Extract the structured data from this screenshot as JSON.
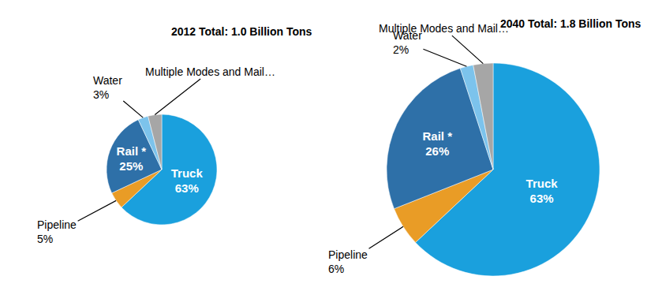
{
  "chart_data": [
    {
      "type": "pie",
      "title": "2012 Total: 1.0 Billion Tons",
      "categories": [
        "Truck",
        "Pipeline",
        "Rail *",
        "Water",
        "Multiple Modes and Mail…"
      ],
      "values": [
        63,
        5,
        25,
        3,
        4
      ],
      "value_labels": [
        "63%",
        "5%",
        "25%",
        "3%",
        null
      ],
      "colors": [
        "#1aa0dd",
        "#e99c26",
        "#2e70a8",
        "#7cc3ec",
        "#a6a6a6"
      ],
      "data_labels": true
    },
    {
      "type": "pie",
      "title": "2040 Total: 1.8 Billion Tons",
      "categories": [
        "Truck",
        "Pipeline",
        "Rail *",
        "Water",
        "Multiple Modes and Mail…"
      ],
      "values": [
        63,
        6,
        26,
        2,
        3
      ],
      "value_labels": [
        "63%",
        "6%",
        "26%",
        "2%",
        null
      ],
      "colors": [
        "#1aa0dd",
        "#e99c26",
        "#2e70a8",
        "#7cc3ec",
        "#a6a6a6"
      ],
      "data_labels": true
    }
  ]
}
